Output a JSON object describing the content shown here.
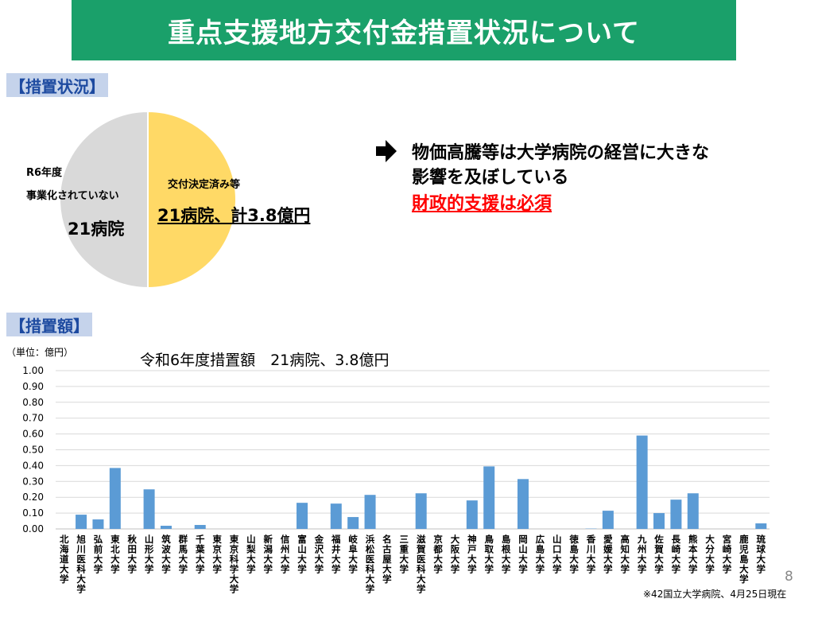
{
  "page": {
    "title": "重点支援地方交付金措置状況について",
    "section1": "【措置状況】",
    "section2": "【措置額】",
    "page_number": "8",
    "footnote": "※42国立大学病院、4月25日現在"
  },
  "pie": {
    "left_line1": "R6年度",
    "left_line2": "事業化されていない",
    "left_count": "21病院",
    "right_line1": "交付決定済み等",
    "right_count": "21病院、計3.8億円",
    "colors": {
      "left": "#d9d9d9",
      "right": "#ffd966"
    }
  },
  "message": {
    "line1": "物価高騰等は大学病院の経営に大きな",
    "line2": "影響を及ぼしている",
    "line3": "財政的支援は必須"
  },
  "chart_data": {
    "type": "bar",
    "unit_label": "（単位：億円）",
    "title": "令和6年度措置額　21病院、3.8億円",
    "ylim": [
      0,
      1.0
    ],
    "yticks": [
      "0.00",
      "0.10",
      "0.20",
      "0.30",
      "0.40",
      "0.50",
      "0.60",
      "0.70",
      "0.80",
      "0.90",
      "1.00"
    ],
    "grid": true,
    "bar_color": "#5b9bd5",
    "categories": [
      "北海道大学",
      "旭川医科大学",
      "弘前大学",
      "東北大学",
      "秋田大学",
      "山形大学",
      "筑波大学",
      "群馬大学",
      "千葉大学",
      "東京大学",
      "東京科学大学",
      "山梨大学",
      "新潟大学",
      "信州大学",
      "富山大学",
      "金沢大学",
      "福井大学",
      "岐阜大学",
      "浜松医科大学",
      "名古屋大学",
      "三重大学",
      "滋賀医科大学",
      "京都大学",
      "大阪大学",
      "神戸大学",
      "鳥取大学",
      "島根大学",
      "岡山大学",
      "広島大学",
      "山口大学",
      "徳島大学",
      "香川大学",
      "愛媛大学",
      "高知大学",
      "九州大学",
      "佐賀大学",
      "長崎大学",
      "熊本大学",
      "大分大学",
      "宮崎大学",
      "鹿児島大学",
      "琉球大学"
    ],
    "values": [
      0,
      0.09,
      0.06,
      0.385,
      0,
      0.25,
      0.02,
      0,
      0.025,
      0,
      0,
      0,
      0,
      0,
      0.165,
      0,
      0.16,
      0.075,
      0.215,
      0,
      0,
      0.225,
      0,
      0,
      0.18,
      0.395,
      0,
      0.315,
      0,
      0,
      0,
      0.002,
      0.115,
      0,
      0.59,
      0.1,
      0.185,
      0.225,
      0,
      0,
      0,
      0.035
    ]
  }
}
